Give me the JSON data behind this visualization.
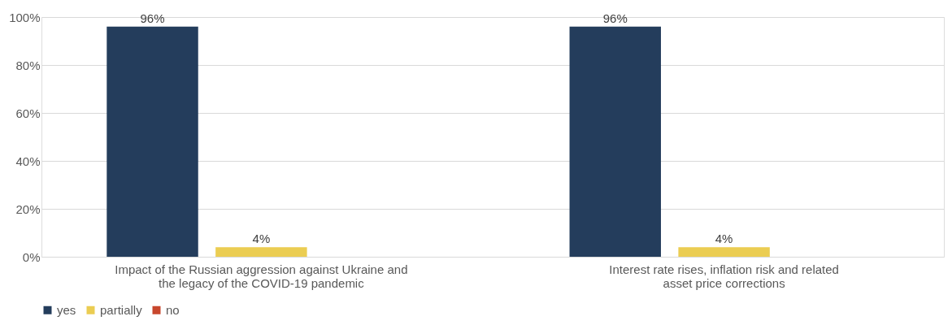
{
  "chart_data": {
    "type": "bar",
    "categories": [
      "Impact of the Russian aggression against Ukraine and the legacy of the COVID-19 pandemic",
      "Interest rate rises, inflation risk and related asset price corrections"
    ],
    "series": [
      {
        "name": "yes",
        "color": "#243d5c",
        "values": [
          96,
          96
        ],
        "value_labels": [
          "96%",
          "96%"
        ]
      },
      {
        "name": "partially",
        "color": "#ebcd52",
        "values": [
          4,
          4
        ],
        "value_labels": [
          "4%",
          "4%"
        ]
      },
      {
        "name": "no",
        "color": "#c8472d",
        "values": [
          0,
          0
        ],
        "value_labels": [
          null,
          null
        ]
      }
    ],
    "ylim": [
      0,
      100
    ],
    "yticks": [
      {
        "value": 0,
        "label": "0%"
      },
      {
        "value": 20,
        "label": "20%"
      },
      {
        "value": 40,
        "label": "40%"
      },
      {
        "value": 60,
        "label": "60%"
      },
      {
        "value": 80,
        "label": "80%"
      },
      {
        "value": 100,
        "label": "100%"
      }
    ],
    "grid": "y",
    "legend": "bottom"
  }
}
